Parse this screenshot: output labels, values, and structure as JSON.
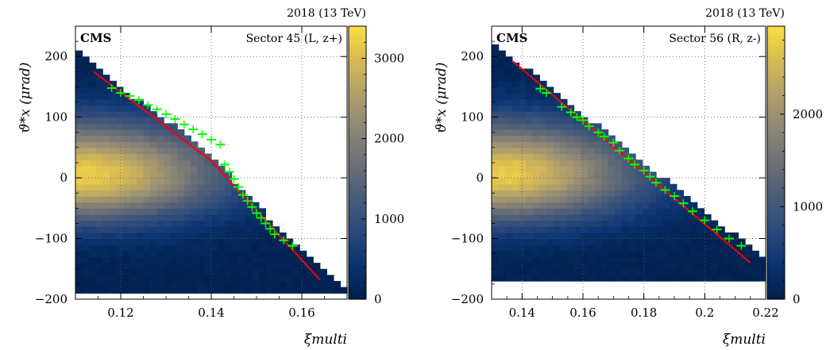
{
  "figure": {
    "colormap": [
      "#00204c",
      "#0b3370",
      "#2c4a7c",
      "#4b5d78",
      "#6d7177",
      "#8e8876",
      "#b1a06a",
      "#d9bb52",
      "#f9e040"
    ]
  },
  "chart_data": [
    {
      "type": "heatmap",
      "energy_label": "2018 (13 TeV)",
      "experiment_label": "CMS",
      "sector_label": "Sector 45 (L, z+)",
      "xlabel": "ξmulti",
      "ylabel": "ϑ*x  (μrad)",
      "xlim": [
        0.11,
        0.17
      ],
      "ylim": [
        -200,
        250
      ],
      "xticks": [
        0.12,
        0.14,
        0.16
      ],
      "xtick_labels": [
        "0.12",
        "0.14",
        "0.16"
      ],
      "yticks": [
        -200,
        -100,
        0,
        100,
        200
      ],
      "ytick_labels": [
        "−200",
        "−100",
        "0",
        "100",
        "200"
      ],
      "colorbar_range": [
        0,
        3400
      ],
      "colorbar_ticks": [
        0,
        1000,
        2000,
        3000
      ],
      "colorbar_tick_labels": [
        "0",
        "1000",
        "2000",
        "3000"
      ],
      "grid": true,
      "density": {
        "center": [
          0.112,
          5
        ],
        "edge_points": [
          [
            0.11,
            220
          ],
          [
            0.12,
            150
          ],
          [
            0.13,
            95
          ],
          [
            0.14,
            38
          ],
          [
            0.15,
            -45
          ],
          [
            0.16,
            -120
          ],
          [
            0.17,
            -190
          ]
        ],
        "bottom": -185,
        "peak": 3300
      },
      "fit_line": {
        "color": "#ff0000",
        "points": [
          [
            0.114,
            175
          ],
          [
            0.14,
            28
          ],
          [
            0.164,
            -168
          ]
        ]
      },
      "markers": {
        "color": "#00ff00",
        "points": [
          [
            0.118,
            148
          ],
          [
            0.12,
            140
          ],
          [
            0.122,
            135
          ],
          [
            0.124,
            128
          ],
          [
            0.126,
            120
          ],
          [
            0.128,
            113
          ],
          [
            0.13,
            105
          ],
          [
            0.132,
            97
          ],
          [
            0.134,
            88
          ],
          [
            0.136,
            80
          ],
          [
            0.138,
            72
          ],
          [
            0.14,
            63
          ],
          [
            0.142,
            55
          ],
          [
            0.143,
            22
          ],
          [
            0.144,
            10
          ],
          [
            0.145,
            -2
          ],
          [
            0.146,
            -15
          ],
          [
            0.147,
            -28
          ],
          [
            0.148,
            -38
          ],
          [
            0.149,
            -48
          ],
          [
            0.15,
            -58
          ],
          [
            0.151,
            -66
          ],
          [
            0.152,
            -75
          ],
          [
            0.153,
            -84
          ],
          [
            0.154,
            -93
          ],
          [
            0.156,
            -103
          ],
          [
            0.158,
            -112
          ]
        ]
      }
    },
    {
      "type": "heatmap",
      "energy_label": "2018 (13 TeV)",
      "experiment_label": "CMS",
      "sector_label": "Sector 56 (R, z-)",
      "xlabel": "ξmulti",
      "ylabel": "ϑ*x  (μrad)",
      "xlim": [
        0.13,
        0.22
      ],
      "ylim": [
        -200,
        250
      ],
      "xticks": [
        0.14,
        0.16,
        0.18,
        0.2,
        0.22
      ],
      "xtick_labels": [
        "0.14",
        "0.16",
        "0.18",
        "0.2",
        "0.22"
      ],
      "yticks": [
        -200,
        -100,
        0,
        100,
        200
      ],
      "ytick_labels": [
        "−200",
        "−100",
        "0",
        "100",
        "200"
      ],
      "colorbar_range": [
        0,
        2950
      ],
      "colorbar_ticks": [
        0,
        1000,
        2000
      ],
      "colorbar_tick_labels": [
        "0",
        "1000",
        "2000"
      ],
      "grid": true,
      "density": {
        "center": [
          0.132,
          5
        ],
        "edge_points": [
          [
            0.13,
            220
          ],
          [
            0.14,
            185
          ],
          [
            0.16,
            105
          ],
          [
            0.18,
            25
          ],
          [
            0.2,
            -55
          ],
          [
            0.215,
            -115
          ],
          [
            0.22,
            -130
          ]
        ],
        "bottom": -165,
        "peak": 2900
      },
      "fit_line": {
        "color": "#ff0000",
        "points": [
          [
            0.137,
            192
          ],
          [
            0.215,
            -140
          ]
        ]
      },
      "markers": {
        "color": "#00ff00",
        "points": [
          [
            0.146,
            147
          ],
          [
            0.148,
            140
          ],
          [
            0.153,
            117
          ],
          [
            0.156,
            108
          ],
          [
            0.158,
            100
          ],
          [
            0.16,
            95
          ],
          [
            0.162,
            85
          ],
          [
            0.165,
            75
          ],
          [
            0.167,
            68
          ],
          [
            0.17,
            58
          ],
          [
            0.172,
            45
          ],
          [
            0.175,
            32
          ],
          [
            0.177,
            22
          ],
          [
            0.18,
            12
          ],
          [
            0.182,
            2
          ],
          [
            0.184,
            -8
          ],
          [
            0.187,
            -20
          ],
          [
            0.19,
            -30
          ],
          [
            0.193,
            -42
          ],
          [
            0.196,
            -55
          ],
          [
            0.2,
            -70
          ],
          [
            0.204,
            -85
          ],
          [
            0.208,
            -100
          ],
          [
            0.212,
            -112
          ]
        ]
      }
    }
  ]
}
